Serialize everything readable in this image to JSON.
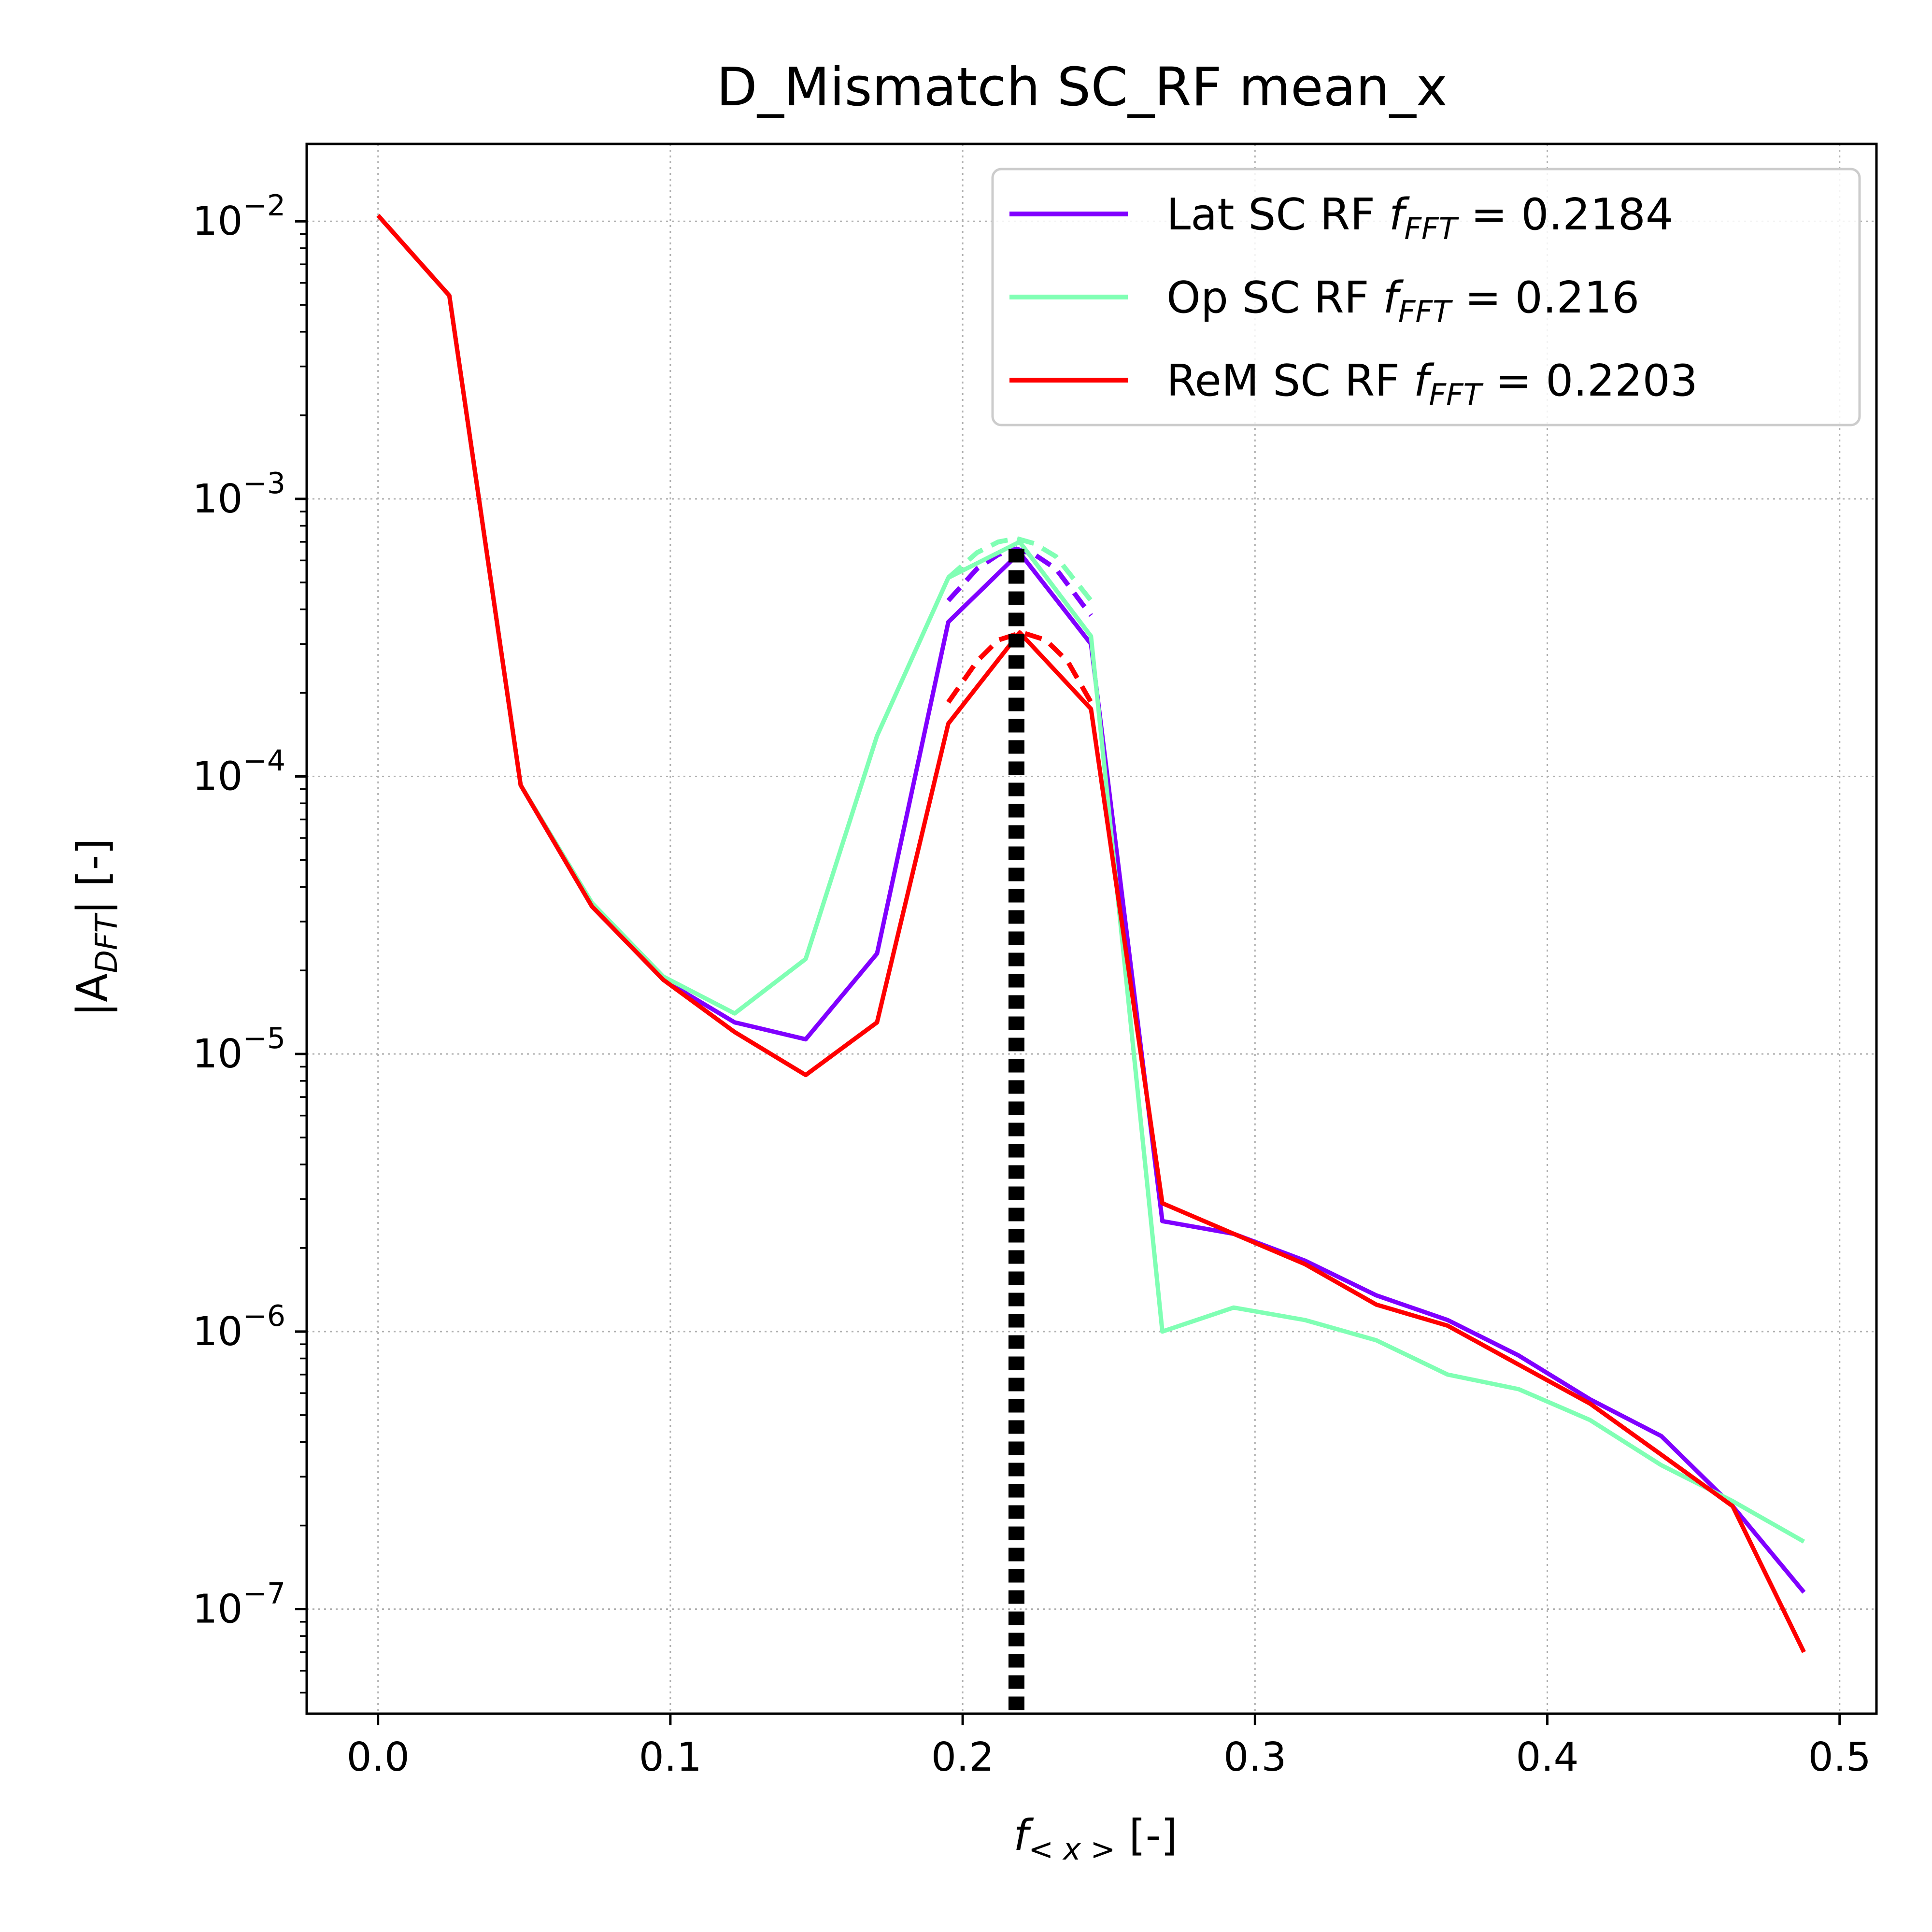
{
  "chart_data": {
    "type": "line",
    "title": "D_Mismatch SC_RF mean_x",
    "xlabel": "f_{<x>} [-]",
    "xlabel_main": "f",
    "xlabel_sub": "< x >",
    "xlabel_unit": " [-]",
    "ylabel": "|A_{DFT}| [-]",
    "ylabel_pre": "|A",
    "ylabel_sub": "DFT",
    "ylabel_post": "| [-]",
    "x_scale": "linear",
    "y_scale": "log",
    "xlim": [
      -0.0244,
      0.5126
    ],
    "ylim": [
      4.2e-08,
      0.019
    ],
    "xticks": [
      0.0,
      0.1,
      0.2,
      0.3,
      0.4,
      0.5
    ],
    "xtick_labels": [
      "0.0",
      "0.1",
      "0.2",
      "0.3",
      "0.4",
      "0.5"
    ],
    "yticks": [
      1e-07,
      1e-06,
      1e-05,
      0.0001,
      0.001,
      0.01
    ],
    "ytick_labels": [
      {
        "base": "10",
        "exp": "−7"
      },
      {
        "base": "10",
        "exp": "−6"
      },
      {
        "base": "10",
        "exp": "−5"
      },
      {
        "base": "10",
        "exp": "−4"
      },
      {
        "base": "10",
        "exp": "−3"
      },
      {
        "base": "10",
        "exp": "−2"
      }
    ],
    "grid": true,
    "legend_position": "top-right",
    "x": [
      0.0,
      0.0244,
      0.0488,
      0.0732,
      0.0976,
      0.122,
      0.1463,
      0.1707,
      0.1951,
      0.2195,
      0.2439,
      0.2683,
      0.2927,
      0.3171,
      0.3415,
      0.3659,
      0.3902,
      0.4146,
      0.439,
      0.4634,
      0.4878
    ],
    "series": [
      {
        "name": "Lat SC RF",
        "legend_value": "0.2184",
        "color": "#8000ff",
        "peak_frequency": 0.2184,
        "values": [
          0.0105,
          0.0054,
          9.3e-05,
          3.4e-05,
          1.85e-05,
          1.3e-05,
          1.13e-05,
          2.3e-05,
          0.00036,
          0.00064,
          0.0003,
          2.5e-06,
          2.25e-06,
          1.8e-06,
          1.35e-06,
          1.1e-06,
          8.2e-07,
          5.7e-07,
          4.2e-07,
          2.35e-07,
          1.15e-07
        ],
        "fit": {
          "x": [
            0.1951,
            0.2049,
            0.2122,
            0.2184,
            0.2246,
            0.2319,
            0.2439
          ],
          "values": [
            0.00043,
            0.00056,
            0.00063,
            0.00066,
            0.00063,
            0.00056,
            0.00038
          ]
        }
      },
      {
        "name": "Op SC RF",
        "legend_value": "0.216",
        "color": "#80ffb4",
        "peak_frequency": 0.216,
        "values": [
          0.0105,
          0.0054,
          9.3e-05,
          3.5e-05,
          1.9e-05,
          1.4e-05,
          2.2e-05,
          0.00014,
          0.00052,
          0.0007,
          0.00032,
          1e-06,
          1.22e-06,
          1.1e-06,
          9.3e-07,
          7e-07,
          6.2e-07,
          4.8e-07,
          3.3e-07,
          2.45e-07,
          1.75e-07
        ],
        "fit": {
          "x": [
            0.1951,
            0.2049,
            0.2122,
            0.2184,
            0.2246,
            0.2319,
            0.2439
          ],
          "values": [
            0.00052,
            0.00064,
            0.0007,
            0.00072,
            0.00069,
            0.00062,
            0.00043
          ]
        }
      },
      {
        "name": "ReM SC RF",
        "legend_value": "0.2203",
        "color": "#ff0000",
        "peak_frequency": 0.2203,
        "values": [
          0.0105,
          0.0054,
          9.3e-05,
          3.4e-05,
          1.85e-05,
          1.2e-05,
          8.4e-06,
          1.3e-05,
          0.000155,
          0.00033,
          0.000175,
          2.9e-06,
          2.25e-06,
          1.75e-06,
          1.25e-06,
          1.05e-06,
          7.6e-07,
          5.5e-07,
          3.6e-07,
          2.35e-07,
          7e-08
        ],
        "fit": {
          "x": [
            0.1951,
            0.2049,
            0.2122,
            0.2203,
            0.2284,
            0.2359,
            0.2439
          ],
          "values": [
            0.000185,
            0.00026,
            0.00031,
            0.00033,
            0.00031,
            0.00026,
            0.000185
          ]
        }
      }
    ],
    "vertical_line": {
      "x": 0.2184,
      "color": "#000000",
      "style": "dotted"
    },
    "legend_label_mid": "f",
    "legend_label_sub": "FFT",
    "legend_label_eq": " =  "
  }
}
